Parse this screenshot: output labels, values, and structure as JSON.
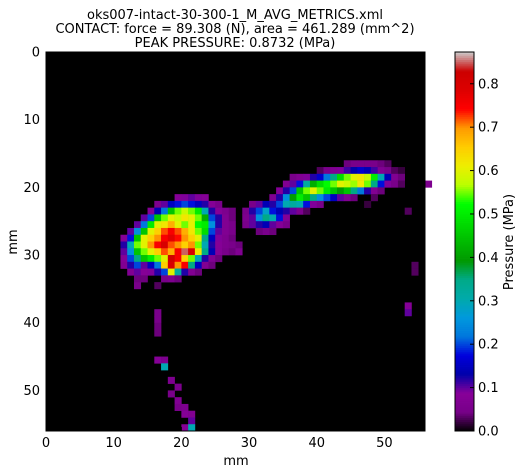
{
  "chart_data": {
    "type": "heatmap",
    "title_lines": [
      "oks007-intact-30-300-1_M_AVG_METRICS.xml",
      "CONTACT: force = 89.308 (N), area = 461.289 (mm^2)",
      "PEAK PRESSURE: 0.8732 (MPa)"
    ],
    "xlabel": "mm",
    "ylabel": "mm",
    "colorbar_label": "Pressure (MPa)",
    "xlim": [
      0,
      56
    ],
    "ylim": [
      56,
      0
    ],
    "x_ticks": [
      0,
      10,
      20,
      30,
      40,
      50
    ],
    "y_ticks": [
      0,
      10,
      20,
      30,
      40,
      50
    ],
    "colorbar_range": [
      0,
      0.8732
    ],
    "colorbar_ticks": [
      "0.0",
      "0.1",
      "0.2",
      "0.3",
      "0.4",
      "0.5",
      "0.6",
      "0.7",
      "0.8"
    ],
    "colormap": "nipy_spectral",
    "grid_size_mm": 1,
    "cells": [
      [
        44,
        16,
        0.04
      ],
      [
        45,
        16,
        0.05
      ],
      [
        46,
        16,
        0.05
      ],
      [
        47,
        16,
        0.05
      ],
      [
        48,
        16,
        0.05
      ],
      [
        49,
        16,
        0.04
      ],
      [
        50,
        16,
        0.03
      ],
      [
        40,
        17,
        0.03
      ],
      [
        41,
        17,
        0.05
      ],
      [
        42,
        17,
        0.07
      ],
      [
        43,
        17,
        0.09
      ],
      [
        44,
        17,
        0.11
      ],
      [
        45,
        17,
        0.13
      ],
      [
        46,
        17,
        0.16
      ],
      [
        47,
        17,
        0.14
      ],
      [
        48,
        17,
        0.11
      ],
      [
        49,
        17,
        0.07
      ],
      [
        50,
        17,
        0.05
      ],
      [
        51,
        17,
        0.03
      ],
      [
        52,
        17,
        0.02
      ],
      [
        36,
        18,
        0.05
      ],
      [
        37,
        18,
        0.07
      ],
      [
        38,
        18,
        0.09
      ],
      [
        39,
        18,
        0.12
      ],
      [
        40,
        18,
        0.16
      ],
      [
        41,
        18,
        0.22
      ],
      [
        42,
        18,
        0.35
      ],
      [
        43,
        18,
        0.48
      ],
      [
        44,
        18,
        0.55
      ],
      [
        45,
        18,
        0.6
      ],
      [
        46,
        18,
        0.62
      ],
      [
        47,
        18,
        0.58
      ],
      [
        48,
        18,
        0.5
      ],
      [
        49,
        18,
        0.3
      ],
      [
        50,
        18,
        0.14
      ],
      [
        51,
        18,
        0.07
      ],
      [
        52,
        18,
        0.04
      ],
      [
        35,
        19,
        0.07
      ],
      [
        36,
        19,
        0.1
      ],
      [
        37,
        19,
        0.18
      ],
      [
        38,
        19,
        0.32
      ],
      [
        39,
        19,
        0.42
      ],
      [
        40,
        19,
        0.48
      ],
      [
        41,
        19,
        0.52
      ],
      [
        42,
        19,
        0.55
      ],
      [
        43,
        19,
        0.6
      ],
      [
        44,
        19,
        0.58
      ],
      [
        45,
        19,
        0.56
      ],
      [
        46,
        19,
        0.62
      ],
      [
        47,
        19,
        0.55
      ],
      [
        48,
        19,
        0.35
      ],
      [
        49,
        19,
        0.18
      ],
      [
        50,
        19,
        0.09
      ],
      [
        51,
        19,
        0.05
      ],
      [
        52,
        19,
        0.03
      ],
      [
        56,
        19,
        0.06
      ],
      [
        34,
        20,
        0.08
      ],
      [
        35,
        20,
        0.12
      ],
      [
        36,
        20,
        0.2
      ],
      [
        37,
        20,
        0.45
      ],
      [
        38,
        20,
        0.55
      ],
      [
        39,
        20,
        0.6
      ],
      [
        40,
        20,
        0.55
      ],
      [
        41,
        20,
        0.5
      ],
      [
        42,
        20,
        0.45
      ],
      [
        43,
        20,
        0.4
      ],
      [
        44,
        20,
        0.45
      ],
      [
        45,
        20,
        0.35
      ],
      [
        46,
        20,
        0.22
      ],
      [
        47,
        20,
        0.12
      ],
      [
        48,
        20,
        0.07
      ],
      [
        49,
        20,
        0.04
      ],
      [
        19,
        21,
        0.08
      ],
      [
        20,
        21,
        0.09
      ],
      [
        21,
        21,
        0.1
      ],
      [
        22,
        21,
        0.09
      ],
      [
        23,
        21,
        0.08
      ],
      [
        33,
        21,
        0.07
      ],
      [
        34,
        21,
        0.12
      ],
      [
        35,
        21,
        0.25
      ],
      [
        36,
        21,
        0.4
      ],
      [
        37,
        21,
        0.5
      ],
      [
        38,
        21,
        0.45
      ],
      [
        39,
        21,
        0.35
      ],
      [
        40,
        21,
        0.25
      ],
      [
        41,
        21,
        0.2
      ],
      [
        42,
        21,
        0.15
      ],
      [
        43,
        21,
        0.1
      ],
      [
        44,
        21,
        0.07
      ],
      [
        45,
        21,
        0.04
      ],
      [
        48,
        21,
        0.03
      ],
      [
        16,
        22,
        0.06
      ],
      [
        17,
        22,
        0.1
      ],
      [
        18,
        22,
        0.15
      ],
      [
        19,
        22,
        0.18
      ],
      [
        20,
        22,
        0.2
      ],
      [
        21,
        22,
        0.18
      ],
      [
        22,
        22,
        0.15
      ],
      [
        23,
        22,
        0.12
      ],
      [
        24,
        22,
        0.08
      ],
      [
        25,
        22,
        0.05
      ],
      [
        30,
        22,
        0.05
      ],
      [
        31,
        22,
        0.1
      ],
      [
        32,
        22,
        0.14
      ],
      [
        33,
        22,
        0.12
      ],
      [
        34,
        22,
        0.2
      ],
      [
        35,
        22,
        0.3
      ],
      [
        36,
        22,
        0.32
      ],
      [
        37,
        22,
        0.3
      ],
      [
        38,
        22,
        0.18
      ],
      [
        39,
        22,
        0.09
      ],
      [
        40,
        22,
        0.05
      ],
      [
        47,
        22,
        0.02
      ],
      [
        15,
        23,
        0.08
      ],
      [
        16,
        23,
        0.14
      ],
      [
        17,
        23,
        0.22
      ],
      [
        18,
        23,
        0.45
      ],
      [
        19,
        23,
        0.55
      ],
      [
        20,
        23,
        0.58
      ],
      [
        21,
        23,
        0.55
      ],
      [
        22,
        23,
        0.5
      ],
      [
        23,
        23,
        0.3
      ],
      [
        24,
        23,
        0.12
      ],
      [
        25,
        23,
        0.08
      ],
      [
        26,
        23,
        0.06
      ],
      [
        27,
        23,
        0.04
      ],
      [
        29,
        23,
        0.05
      ],
      [
        30,
        23,
        0.12
      ],
      [
        31,
        23,
        0.2
      ],
      [
        32,
        23,
        0.28
      ],
      [
        33,
        23,
        0.18
      ],
      [
        34,
        23,
        0.14
      ],
      [
        35,
        23,
        0.12
      ],
      [
        36,
        23,
        0.1
      ],
      [
        37,
        23,
        0.06
      ],
      [
        38,
        23,
        0.03
      ],
      [
        53,
        23,
        0.03
      ],
      [
        14,
        24,
        0.1
      ],
      [
        15,
        24,
        0.2
      ],
      [
        16,
        24,
        0.45
      ],
      [
        17,
        24,
        0.55
      ],
      [
        18,
        24,
        0.6
      ],
      [
        19,
        24,
        0.58
      ],
      [
        20,
        24,
        0.62
      ],
      [
        21,
        24,
        0.6
      ],
      [
        22,
        24,
        0.55
      ],
      [
        23,
        24,
        0.42
      ],
      [
        24,
        24,
        0.2
      ],
      [
        25,
        24,
        0.12
      ],
      [
        26,
        24,
        0.07
      ],
      [
        27,
        24,
        0.04
      ],
      [
        29,
        24,
        0.06
      ],
      [
        30,
        24,
        0.1
      ],
      [
        31,
        24,
        0.25
      ],
      [
        32,
        24,
        0.35
      ],
      [
        33,
        24,
        0.3
      ],
      [
        34,
        24,
        0.18
      ],
      [
        35,
        24,
        0.08
      ],
      [
        13,
        25,
        0.1
      ],
      [
        14,
        25,
        0.22
      ],
      [
        15,
        25,
        0.5
      ],
      [
        16,
        25,
        0.6
      ],
      [
        17,
        25,
        0.62
      ],
      [
        18,
        25,
        0.68
      ],
      [
        19,
        25,
        0.6
      ],
      [
        20,
        25,
        0.55
      ],
      [
        21,
        25,
        0.6
      ],
      [
        22,
        25,
        0.52
      ],
      [
        23,
        25,
        0.5
      ],
      [
        24,
        25,
        0.25
      ],
      [
        25,
        25,
        0.12
      ],
      [
        26,
        25,
        0.07
      ],
      [
        27,
        25,
        0.05
      ],
      [
        29,
        25,
        0.05
      ],
      [
        30,
        25,
        0.1
      ],
      [
        31,
        25,
        0.12
      ],
      [
        32,
        25,
        0.14
      ],
      [
        33,
        25,
        0.1
      ],
      [
        34,
        25,
        0.08
      ],
      [
        35,
        25,
        0.05
      ],
      [
        12,
        26,
        0.1
      ],
      [
        13,
        26,
        0.25
      ],
      [
        14,
        26,
        0.45
      ],
      [
        15,
        26,
        0.6
      ],
      [
        16,
        26,
        0.65
      ],
      [
        17,
        26,
        0.72
      ],
      [
        18,
        26,
        0.75
      ],
      [
        19,
        26,
        0.72
      ],
      [
        20,
        26,
        0.68
      ],
      [
        21,
        26,
        0.62
      ],
      [
        22,
        26,
        0.55
      ],
      [
        23,
        26,
        0.48
      ],
      [
        24,
        26,
        0.2
      ],
      [
        25,
        26,
        0.1
      ],
      [
        26,
        26,
        0.07
      ],
      [
        27,
        26,
        0.05
      ],
      [
        31,
        26,
        0.04
      ],
      [
        32,
        26,
        0.05
      ],
      [
        33,
        26,
        0.04
      ],
      [
        11,
        27,
        0.08
      ],
      [
        12,
        27,
        0.18
      ],
      [
        13,
        27,
        0.45
      ],
      [
        14,
        27,
        0.6
      ],
      [
        15,
        27,
        0.65
      ],
      [
        16,
        27,
        0.7
      ],
      [
        17,
        27,
        0.75
      ],
      [
        18,
        27,
        0.78
      ],
      [
        19,
        27,
        0.74
      ],
      [
        20,
        27,
        0.7
      ],
      [
        21,
        27,
        0.65
      ],
      [
        22,
        27,
        0.6
      ],
      [
        23,
        27,
        0.35
      ],
      [
        24,
        27,
        0.15
      ],
      [
        25,
        27,
        0.09
      ],
      [
        26,
        27,
        0.06
      ],
      [
        27,
        27,
        0.04
      ],
      [
        11,
        28,
        0.12
      ],
      [
        12,
        28,
        0.3
      ],
      [
        13,
        28,
        0.55
      ],
      [
        14,
        28,
        0.6
      ],
      [
        15,
        28,
        0.7
      ],
      [
        16,
        28,
        0.75
      ],
      [
        17,
        28,
        0.8
      ],
      [
        18,
        28,
        0.72
      ],
      [
        19,
        28,
        0.7
      ],
      [
        20,
        28,
        0.65
      ],
      [
        21,
        28,
        0.7
      ],
      [
        22,
        28,
        0.55
      ],
      [
        23,
        28,
        0.3
      ],
      [
        24,
        28,
        0.12
      ],
      [
        25,
        28,
        0.08
      ],
      [
        26,
        28,
        0.06
      ],
      [
        27,
        28,
        0.05
      ],
      [
        28,
        28,
        0.04
      ],
      [
        11,
        29,
        0.1
      ],
      [
        12,
        29,
        0.25
      ],
      [
        13,
        29,
        0.45
      ],
      [
        14,
        29,
        0.55
      ],
      [
        15,
        29,
        0.6
      ],
      [
        16,
        29,
        0.65
      ],
      [
        17,
        29,
        0.72
      ],
      [
        18,
        29,
        0.68
      ],
      [
        19,
        29,
        0.75
      ],
      [
        20,
        29,
        0.85
      ],
      [
        21,
        29,
        0.8
      ],
      [
        22,
        29,
        0.62
      ],
      [
        23,
        29,
        0.35
      ],
      [
        24,
        29,
        0.14
      ],
      [
        25,
        29,
        0.08
      ],
      [
        26,
        29,
        0.05
      ],
      [
        27,
        29,
        0.04
      ],
      [
        28,
        29,
        0.07
      ],
      [
        11,
        30,
        0.08
      ],
      [
        12,
        30,
        0.2
      ],
      [
        13,
        30,
        0.35
      ],
      [
        14,
        30,
        0.45
      ],
      [
        15,
        30,
        0.5
      ],
      [
        16,
        30,
        0.55
      ],
      [
        17,
        30,
        0.6
      ],
      [
        18,
        30,
        0.82
      ],
      [
        19,
        30,
        0.75
      ],
      [
        20,
        30,
        0.65
      ],
      [
        21,
        30,
        0.55
      ],
      [
        22,
        30,
        0.3
      ],
      [
        23,
        30,
        0.12
      ],
      [
        24,
        30,
        0.07
      ],
      [
        25,
        30,
        0.04
      ],
      [
        11,
        31,
        0.07
      ],
      [
        12,
        31,
        0.12
      ],
      [
        13,
        31,
        0.2
      ],
      [
        14,
        31,
        0.1
      ],
      [
        15,
        31,
        0.15
      ],
      [
        16,
        31,
        0.22
      ],
      [
        17,
        31,
        0.65
      ],
      [
        18,
        31,
        0.8
      ],
      [
        19,
        31,
        0.7
      ],
      [
        20,
        31,
        0.75
      ],
      [
        21,
        31,
        0.35
      ],
      [
        22,
        31,
        0.15
      ],
      [
        23,
        31,
        0.07
      ],
      [
        24,
        31,
        0.04
      ],
      [
        54,
        31,
        0.03
      ],
      [
        12,
        32,
        0.07
      ],
      [
        13,
        32,
        0.1
      ],
      [
        14,
        32,
        0.08
      ],
      [
        15,
        32,
        0.09
      ],
      [
        16,
        32,
        0.12
      ],
      [
        17,
        32,
        0.2
      ],
      [
        18,
        32,
        0.6
      ],
      [
        19,
        32,
        0.32
      ],
      [
        20,
        32,
        0.12
      ],
      [
        21,
        32,
        0.07
      ],
      [
        22,
        32,
        0.04
      ],
      [
        54,
        32,
        0.03
      ],
      [
        13,
        33,
        0.04
      ],
      [
        14,
        33,
        0.04
      ],
      [
        17,
        33,
        0.05
      ],
      [
        18,
        33,
        0.06
      ],
      [
        19,
        33,
        0.04
      ],
      [
        13,
        34,
        0.05
      ],
      [
        16,
        34,
        0.03
      ],
      [
        53,
        37,
        0.08
      ],
      [
        53,
        38,
        0.1
      ],
      [
        16,
        38,
        0.05
      ],
      [
        16,
        39,
        0.05
      ],
      [
        16,
        40,
        0.04
      ],
      [
        16,
        41,
        0.04
      ],
      [
        16,
        45,
        0.08
      ],
      [
        17,
        45,
        0.06
      ],
      [
        17,
        46,
        0.3
      ],
      [
        18,
        48,
        0.06
      ],
      [
        19,
        49,
        0.06
      ],
      [
        18,
        50,
        0.05
      ],
      [
        19,
        51,
        0.07
      ],
      [
        19,
        52,
        0.05
      ],
      [
        20,
        52,
        0.06
      ],
      [
        20,
        53,
        0.08
      ],
      [
        21,
        53,
        0.07
      ],
      [
        21,
        54,
        0.1
      ],
      [
        20,
        55,
        0.08
      ],
      [
        21,
        55,
        0.3
      ]
    ]
  }
}
